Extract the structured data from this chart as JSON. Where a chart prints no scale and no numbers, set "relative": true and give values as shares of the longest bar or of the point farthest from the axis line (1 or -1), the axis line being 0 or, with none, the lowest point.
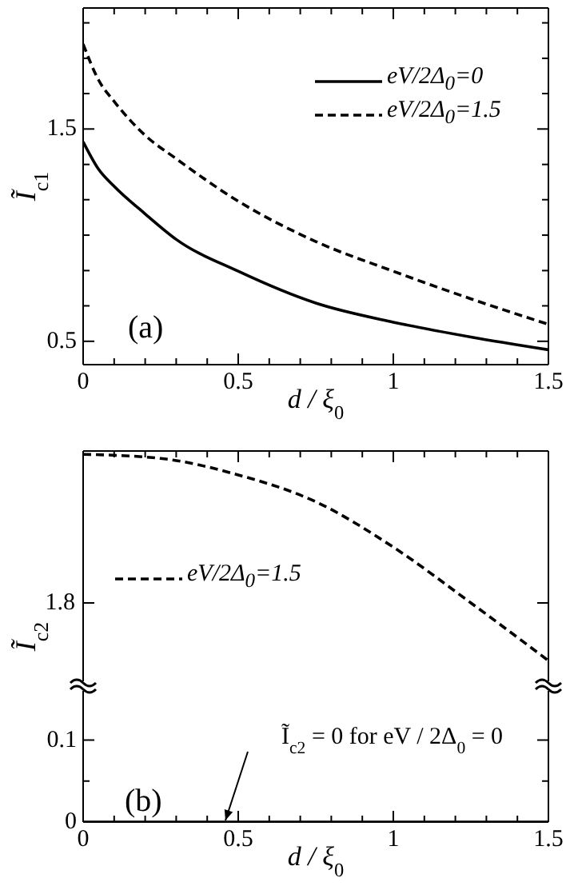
{
  "chart_data": [
    {
      "type": "line",
      "xlabel": "d / ξ$_{0}$",
      "ylabel": "Ĩ$_{c1}$",
      "x": [
        0,
        0.05,
        0.1,
        0.2,
        0.3,
        0.5,
        0.75,
        1,
        1.25,
        1.5
      ],
      "series": [
        {
          "name": "eV/2Δ$_{0}$=0",
          "color": "#000000",
          "line_style": "solid",
          "values": [
            1.44,
            1.31,
            1.23,
            1.1,
            0.98,
            0.83,
            0.68,
            0.59,
            0.52,
            0.46
          ]
        },
        {
          "name": "eV/2Δ$_{0}$=1.5",
          "color": "#000000",
          "line_style": "dashed",
          "values": [
            1.9,
            1.73,
            1.63,
            1.47,
            1.36,
            1.16,
            0.97,
            0.83,
            0.7,
            0.58
          ]
        }
      ],
      "xlim": [
        0,
        1.5
      ],
      "xticks": [
        0,
        {
          "value": 0.1,
          "label": null
        },
        {
          "value": 0.2,
          "label": null
        },
        {
          "value": 0.3,
          "label": null
        },
        {
          "value": 0.4,
          "label": null
        },
        0.5,
        {
          "value": 0.6,
          "label": null
        },
        {
          "value": 0.7,
          "label": null
        },
        {
          "value": 0.8,
          "label": null
        },
        {
          "value": 0.9,
          "label": null
        },
        1,
        {
          "value": 1.1,
          "label": null
        },
        {
          "value": 1.2,
          "label": null
        },
        {
          "value": 1.3,
          "label": null
        },
        {
          "value": 1.4,
          "label": null
        },
        1.5
      ],
      "ylim": [
        0.39,
        2.07
      ],
      "yticks": [
        0.5,
        {
          "value": 0.667,
          "label": null
        },
        {
          "value": 0.833,
          "label": null
        },
        {
          "value": 1,
          "label": null
        },
        {
          "value": 1.167,
          "label": null
        },
        {
          "value": 1.333,
          "label": null
        },
        1.5,
        {
          "value": 1.667,
          "label": null
        },
        {
          "value": 1.833,
          "label": null
        },
        {
          "value": 2,
          "label": null
        }
      ],
      "legend": "top right",
      "marker": "none",
      "annotations": [
        "(a)"
      ]
    },
    {
      "type": "line",
      "ylabel": "Ĩ$_{c2}$",
      "relative": true,
      "x": [
        0,
        0.25,
        0.5,
        0.75,
        1,
        1.25,
        1.5
      ],
      "series": [
        {
          "name": "eV/2Δ$_{0}$=1.5",
          "color": "#000000",
          "line_style": "dashed",
          "values": [
            1,
            0.98,
            0.9,
            0.77,
            0.55,
            0.28,
            0
          ]
        }
      ],
      "xlim": [
        0,
        1.5
      ],
      "xticks": [
        0,
        {
          "value": 0.1,
          "label": null
        },
        {
          "value": 0.2,
          "label": null
        },
        {
          "value": 0.3,
          "label": null
        },
        {
          "value": 0.4,
          "label": null
        },
        0.5,
        {
          "value": 0.6,
          "label": null
        },
        {
          "value": 0.7,
          "label": null
        },
        {
          "value": 0.8,
          "label": null
        },
        {
          "value": 0.9,
          "label": null
        },
        1,
        {
          "value": 1.1,
          "label": null
        },
        {
          "value": 1.2,
          "label": null
        },
        {
          "value": 1.3,
          "label": null
        },
        {
          "value": 1.4,
          "label": null
        },
        1.5
      ],
      "tick_labels": false,
      "legend": "left",
      "marker": "none",
      "annotations": [
        "1.8"
      ]
    },
    {
      "type": "line",
      "xlabel": "d / ξ$_{0}$",
      "x": [
        0,
        1.5
      ],
      "series": [
        {
          "color": "#000000",
          "line_style": "solid",
          "values": [
            0,
            0
          ]
        }
      ],
      "xlim": [
        0,
        1.5
      ],
      "xticks": [
        0,
        {
          "value": 0.1,
          "label": null
        },
        {
          "value": 0.2,
          "label": null
        },
        {
          "value": 0.3,
          "label": null
        },
        {
          "value": 0.4,
          "label": null
        },
        0.5,
        {
          "value": 0.6,
          "label": null
        },
        {
          "value": 0.7,
          "label": null
        },
        {
          "value": 0.8,
          "label": null
        },
        {
          "value": 0.9,
          "label": null
        },
        1,
        {
          "value": 1.1,
          "label": null
        },
        {
          "value": 1.2,
          "label": null
        },
        {
          "value": 1.3,
          "label": null
        },
        {
          "value": 1.4,
          "label": null
        },
        1.5
      ],
      "ylim": [
        0,
        0.16
      ],
      "yticks": [
        0,
        {
          "value": 0.05,
          "label": null
        },
        0.1
      ],
      "marker": "none",
      "annotations": [
        "(b)",
        "Ĩ$_{c2}$ = 0 for eV / 2Δ$_{0}$ = 0"
      ]
    }
  ]
}
